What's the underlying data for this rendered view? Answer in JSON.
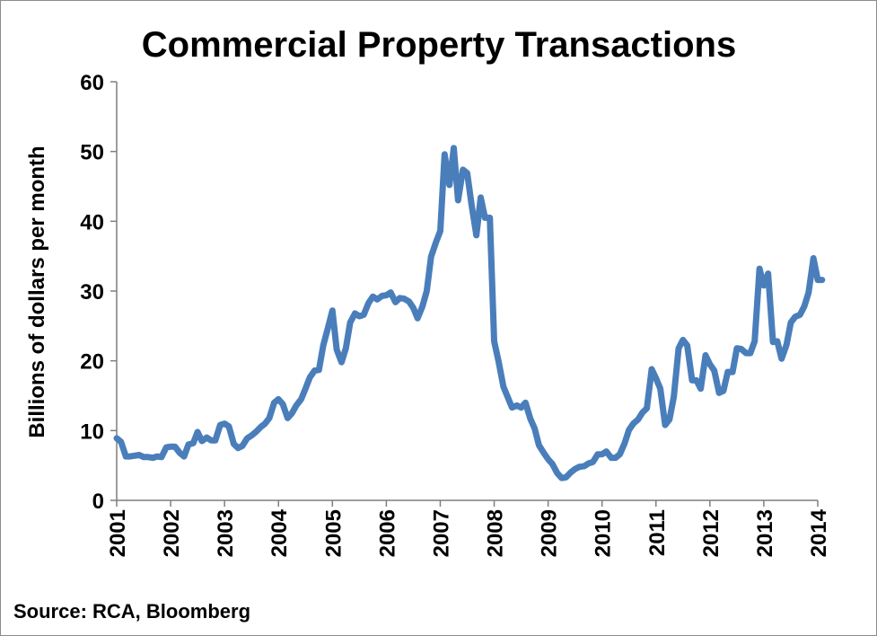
{
  "chart_data": {
    "type": "line",
    "title": "Commercial Property Transactions",
    "xlabel": "",
    "ylabel": "Billions of dollars per month",
    "source": "Source:  RCA, Bloomberg",
    "x_ticks": [
      "2001",
      "2002",
      "2003",
      "2004",
      "2005",
      "2006",
      "2007",
      "2008",
      "2009",
      "2010",
      "2011",
      "2012",
      "2013",
      "2014"
    ],
    "y_ticks": [
      0,
      10,
      20,
      30,
      40,
      50,
      60
    ],
    "xlim": [
      2001,
      2014.1
    ],
    "ylim": [
      0,
      60
    ],
    "grid": false,
    "legend": "none",
    "colors": {
      "series": "#4a7ebb",
      "axis": "#7f7f7f",
      "text": "#000000"
    },
    "series": [
      {
        "x": [
          2001.0,
          2001.08,
          2001.17,
          2001.25,
          2001.33,
          2001.42,
          2001.5,
          2001.58,
          2001.67,
          2001.75,
          2001.83,
          2001.92,
          2002.0,
          2002.08,
          2002.17,
          2002.25,
          2002.33,
          2002.42,
          2002.5,
          2002.58,
          2002.67,
          2002.75,
          2002.83,
          2002.92,
          2003.0,
          2003.08,
          2003.17,
          2003.25,
          2003.33,
          2003.42,
          2003.5,
          2003.58,
          2003.67,
          2003.75,
          2003.83,
          2003.92,
          2004.0,
          2004.08,
          2004.17,
          2004.25,
          2004.33,
          2004.42,
          2004.5,
          2004.58,
          2004.67,
          2004.75,
          2004.83,
          2004.92,
          2005.0,
          2005.08,
          2005.17,
          2005.25,
          2005.33,
          2005.42,
          2005.5,
          2005.58,
          2005.67,
          2005.75,
          2005.83,
          2005.92,
          2006.0,
          2006.08,
          2006.17,
          2006.25,
          2006.33,
          2006.42,
          2006.5,
          2006.58,
          2006.67,
          2006.75,
          2006.83,
          2006.92,
          2007.0,
          2007.08,
          2007.17,
          2007.25,
          2007.33,
          2007.42,
          2007.5,
          2007.58,
          2007.67,
          2007.75,
          2007.83,
          2007.92,
          2008.0,
          2008.08,
          2008.17,
          2008.25,
          2008.33,
          2008.42,
          2008.5,
          2008.58,
          2008.67,
          2008.75,
          2008.83,
          2008.92,
          2009.0,
          2009.08,
          2009.17,
          2009.25,
          2009.33,
          2009.42,
          2009.5,
          2009.58,
          2009.67,
          2009.75,
          2009.83,
          2009.92,
          2010.0,
          2010.08,
          2010.17,
          2010.25,
          2010.33,
          2010.42,
          2010.5,
          2010.58,
          2010.67,
          2010.75,
          2010.83,
          2010.92,
          2011.0,
          2011.08,
          2011.17,
          2011.25,
          2011.33,
          2011.42,
          2011.5,
          2011.58,
          2011.67,
          2011.75,
          2011.83,
          2011.92,
          2012.0,
          2012.08,
          2012.17,
          2012.25,
          2012.33,
          2012.42,
          2012.5,
          2012.58,
          2012.67,
          2012.75,
          2012.83,
          2012.92,
          2013.0,
          2013.08,
          2013.17,
          2013.25,
          2013.33,
          2013.42,
          2013.5,
          2013.58,
          2013.67,
          2013.75,
          2013.83,
          2013.92,
          2014.0,
          2014.08
        ],
        "values": [
          8.9,
          8.4,
          6.3,
          6.3,
          6.4,
          6.5,
          6.2,
          6.2,
          6.1,
          6.3,
          6.2,
          7.6,
          7.7,
          7.7,
          6.8,
          6.3,
          8.0,
          8.2,
          9.8,
          8.5,
          9.0,
          8.6,
          8.6,
          10.8,
          11.0,
          10.6,
          8.1,
          7.5,
          7.8,
          8.9,
          9.3,
          9.8,
          10.5,
          11.0,
          11.8,
          14.0,
          14.5,
          13.8,
          11.8,
          12.5,
          13.6,
          14.5,
          16.0,
          17.6,
          18.6,
          18.7,
          22.2,
          24.8,
          27.2,
          21.6,
          19.8,
          21.8,
          25.5,
          26.8,
          26.4,
          26.6,
          28.3,
          29.2,
          28.8,
          29.3,
          29.4,
          29.8,
          28.4,
          29.0,
          28.9,
          28.5,
          27.6,
          26.1,
          27.8,
          30.0,
          34.9,
          37.0,
          38.6,
          49.6,
          45.2,
          50.5,
          43.0,
          47.4,
          46.9,
          42.4,
          38.0,
          43.4,
          40.5,
          40.5,
          22.8,
          20.0,
          16.3,
          14.8,
          13.3,
          13.6,
          13.3,
          14.0,
          11.7,
          10.3,
          7.9,
          6.8,
          5.9,
          5.2,
          3.9,
          3.2,
          3.3,
          4.0,
          4.5,
          4.8,
          4.9,
          5.3,
          5.5,
          6.6,
          6.6,
          7.0,
          6.1,
          6.1,
          6.6,
          8.2,
          10.1,
          11.0,
          11.6,
          12.6,
          13.2,
          18.8,
          17.5,
          16.0,
          10.8,
          11.6,
          14.8,
          21.8,
          23.0,
          22.2,
          17.2,
          17.2,
          16.0,
          20.8,
          19.5,
          18.6,
          15.4,
          15.7,
          18.4,
          18.4,
          21.8,
          21.7,
          21.1,
          21.1,
          22.8,
          33.2,
          30.8,
          32.5,
          22.7,
          22.8,
          20.3,
          22.3,
          25.5,
          26.3,
          26.6,
          27.8,
          29.8,
          34.7,
          31.6,
          31.6
        ]
      }
    ]
  }
}
